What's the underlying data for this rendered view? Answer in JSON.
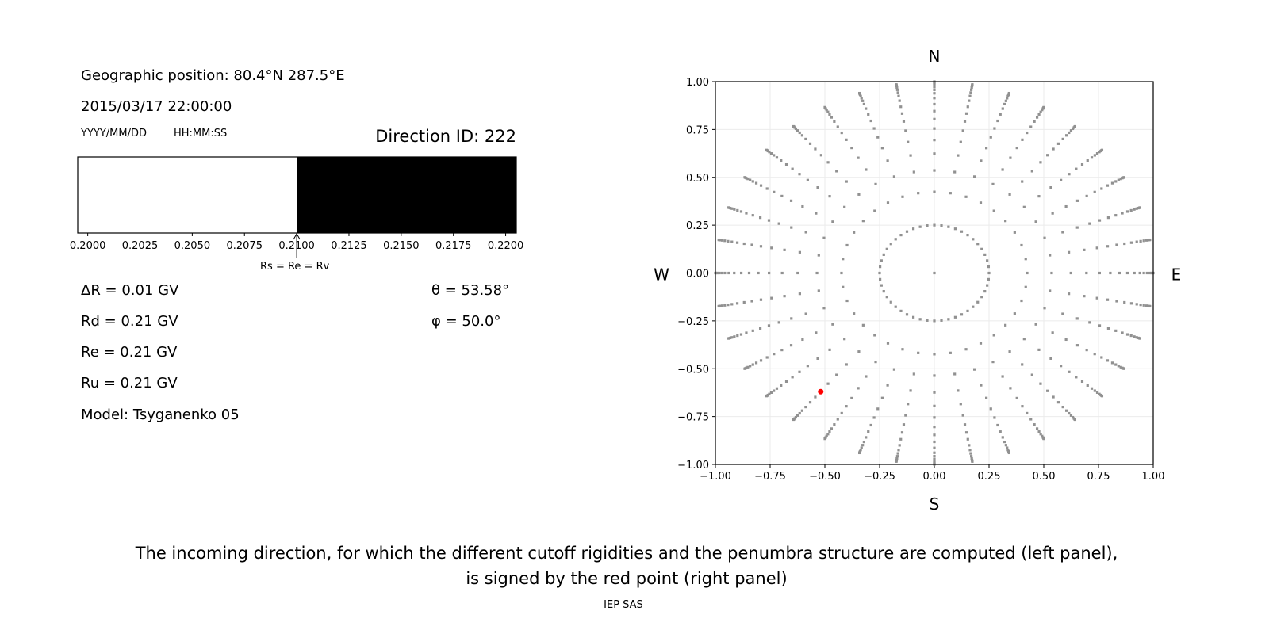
{
  "left_panel": {
    "geo_position": "Geographic position: 80.4°N 287.5°E",
    "datetime": "2015/03/17 22:00:00",
    "date_format": "YYYY/MM/DD",
    "time_format": "HH:MM:SS",
    "direction_id": "Direction ID: 222",
    "delta_r": "ΔR = 0.01 GV",
    "rd": "Rd = 0.21 GV",
    "re": "Re = 0.21 GV",
    "ru": "Ru = 0.21 GV",
    "model": "Model: Tsyganenko 05",
    "theta": "θ = 53.58°",
    "phi": "φ = 50.0°",
    "arrow_label": "Rs = Re = Rv"
  },
  "caption": {
    "line1": "The incoming direction, for which the different cutoff rigidities and the penumbra structure are computed (left panel),",
    "line2": "is signed by the red point (right panel)",
    "credit": "IEP SAS"
  },
  "chart_data": [
    {
      "type": "bar",
      "description_of_marks": "penumbra strip: allowed (white) / forbidden (black)",
      "xlim": [
        0.19952,
        0.22051
      ],
      "xticks": [
        "0.2000",
        "0.2025",
        "0.2050",
        "0.2075",
        "0.2100",
        "0.2125",
        "0.2150",
        "0.2175",
        "0.2200"
      ],
      "segments": [
        {
          "from": 0.19952,
          "to": 0.21,
          "color": "#ffffff"
        },
        {
          "from": 0.21,
          "to": 0.22051,
          "color": "#000000"
        }
      ],
      "marker_value": 0.21,
      "grid": false
    },
    {
      "type": "scatter",
      "xlim": [
        -1,
        1
      ],
      "ylim": [
        -1,
        1
      ],
      "xticks": [
        "−1.00",
        "−0.75",
        "−0.50",
        "−0.25",
        "0.00",
        "0.25",
        "0.50",
        "0.75",
        "1.00"
      ],
      "yticks": [
        "1.00",
        "0.75",
        "0.50",
        "0.25",
        "0.00",
        "−0.25",
        "−0.50",
        "−0.75",
        "−1.00"
      ],
      "compass": {
        "north": "N",
        "south": "S",
        "west": "W",
        "east": "E"
      },
      "grid": true,
      "point_color": "#919191",
      "highlight_color": "#ff0000",
      "center_point": [
        0,
        0
      ],
      "ring": {
        "radius": 0.25,
        "angle_step_deg": 7.5
      },
      "rays": {
        "angle_step_deg": 10,
        "radii": [
          0.424,
          0.536,
          0.624,
          0.695,
          0.755,
          0.804,
          0.846,
          0.882,
          0.914,
          0.939,
          0.957,
          0.972,
          0.984,
          0.992,
          0.997,
          1.0
        ]
      },
      "highlight": {
        "x": -0.519,
        "y": -0.62
      }
    }
  ]
}
